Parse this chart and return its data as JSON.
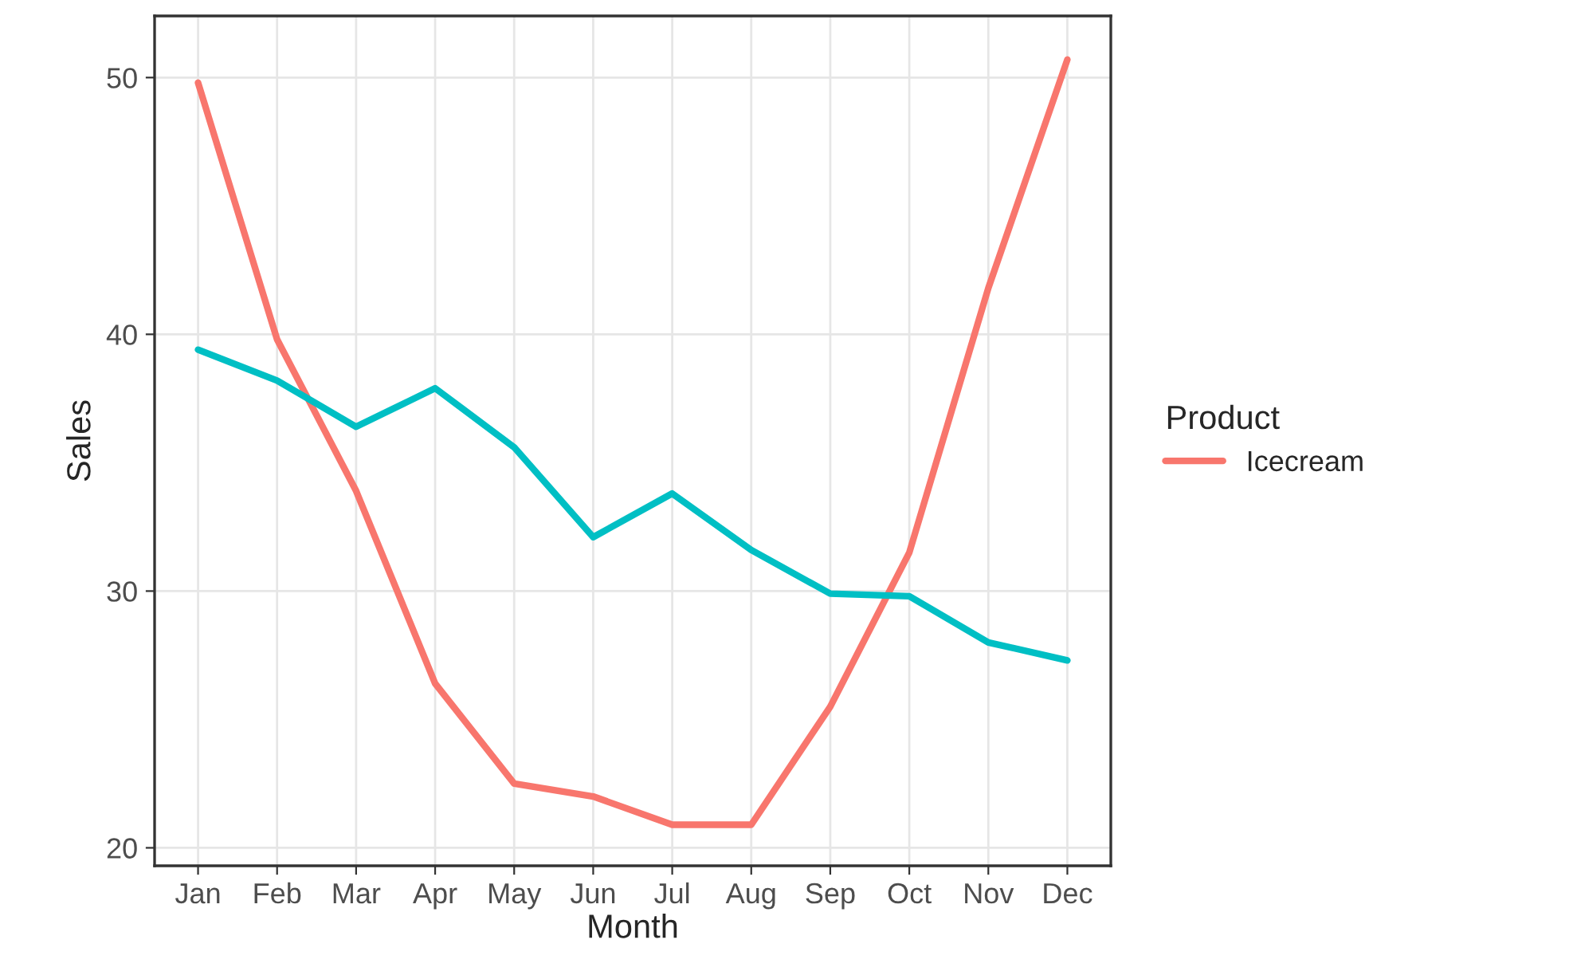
{
  "chart_data": {
    "type": "line",
    "xlabel": "Month",
    "ylabel": "Sales",
    "legend_title": "Product",
    "categories": [
      "Jan",
      "Feb",
      "Mar",
      "Apr",
      "May",
      "Jun",
      "Jul",
      "Aug",
      "Sep",
      "Oct",
      "Nov",
      "Dec"
    ],
    "series": [
      {
        "name": "Icecream",
        "color": "#f8766d",
        "values": [
          49.8,
          39.8,
          33.9,
          26.4,
          22.5,
          22.0,
          20.9,
          20.9,
          25.5,
          31.5,
          41.8,
          50.7
        ]
      },
      {
        "color": "#00bfc4",
        "values": [
          39.4,
          38.2,
          36.4,
          37.9,
          35.6,
          32.1,
          33.8,
          31.6,
          29.9,
          29.8,
          28.0,
          27.3
        ]
      }
    ],
    "ylim": [
      19.3,
      52.4
    ],
    "yticks": [
      20,
      30,
      40,
      50
    ],
    "grid": true,
    "legend": "right",
    "marker": "none",
    "line_style": "solid"
  }
}
